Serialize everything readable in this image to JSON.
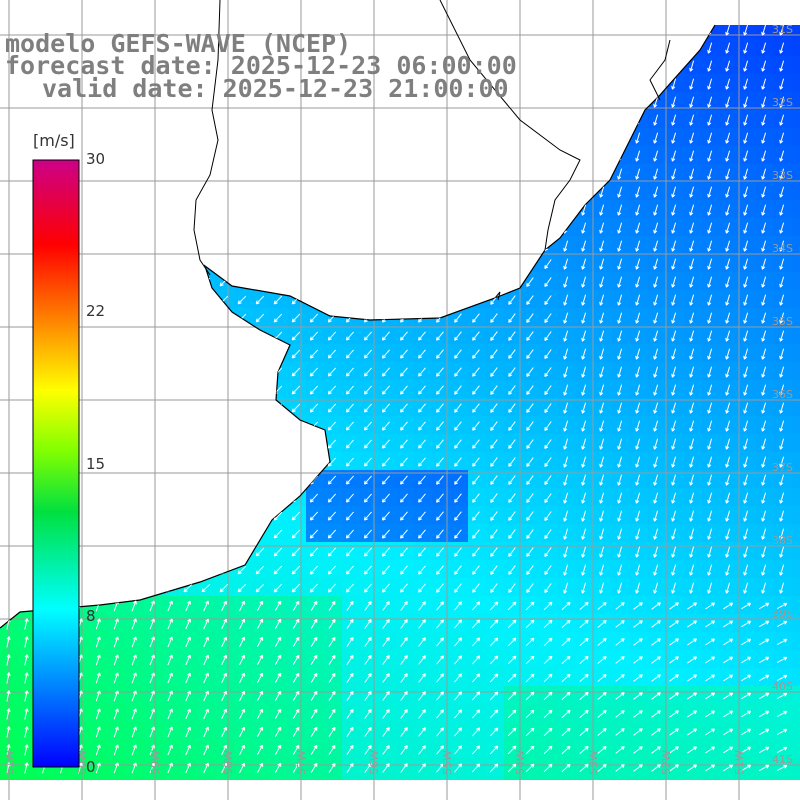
{
  "title": {
    "line1": "modelo GEFS-WAVE (NCEP)",
    "line2": "forecast date: 2025-12-23 06:00:00",
    "line3": "valid date: 2025-12-23 21:00:00"
  },
  "colorbar": {
    "unit": "[m/s]",
    "ticks": [
      "30",
      "22",
      "15",
      "8",
      "0"
    ],
    "colors": [
      "#0000ff",
      "#00aaff",
      "#00ffff",
      "#00ff00",
      "#ffff00",
      "#ff7f00",
      "#ff0000",
      "#cc0088"
    ]
  },
  "map": {
    "quantity": "wind speed and direction",
    "lat_labels": [
      "31S",
      "32S",
      "33S",
      "34S",
      "35S",
      "36S",
      "37S",
      "38S",
      "39S",
      "40S",
      "41S"
    ],
    "lon_labels": [
      "61W",
      "60W",
      "59W",
      "58W",
      "57W",
      "56W",
      "55W",
      "54W",
      "53W",
      "52W",
      "51W"
    ],
    "land_color": "#ffffff",
    "grid_color": "#9a9a9a",
    "coast_color": "#000000"
  }
}
